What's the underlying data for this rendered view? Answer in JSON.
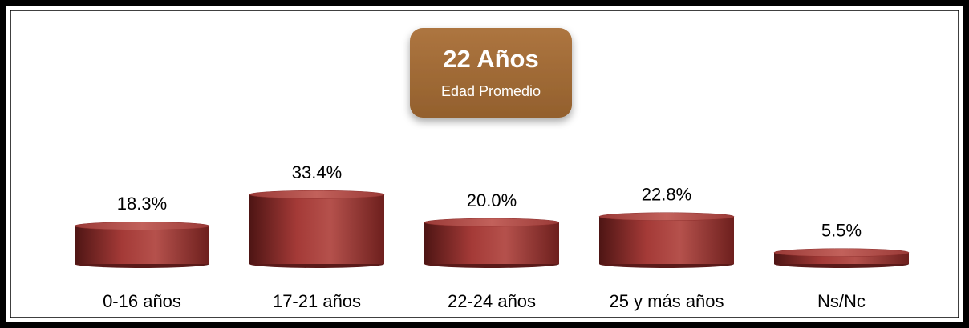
{
  "chart_data": {
    "type": "bar",
    "annotation": {
      "title": "22 Años",
      "subtitle": "Edad Promedio"
    },
    "categories": [
      "0-16 años",
      "17-21 años",
      "22-24 años",
      "25 y más años",
      "Ns/Nc"
    ],
    "values": [
      18.3,
      33.4,
      20.0,
      22.8,
      5.5
    ],
    "value_labels": [
      "18.3%",
      "33.4%",
      "20.0%",
      "22.8%",
      "5.5%"
    ],
    "color": "#8e2e2c"
  }
}
